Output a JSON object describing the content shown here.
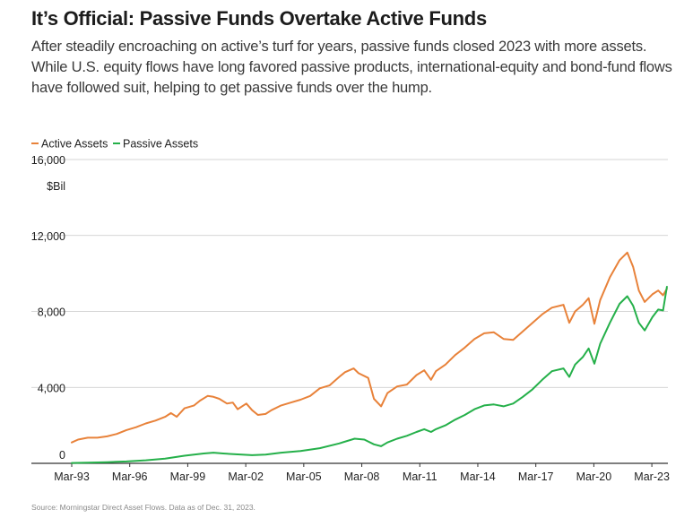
{
  "title": "It’s Official: Passive Funds Overtake Active Funds",
  "subtitle": "After steadily encroaching on active’s turf for years, passive funds closed 2023 with more assets. While U.S. equity flows have long favored passive products, international-equity and bond-fund flows have followed suit, helping to get passive funds over the hump.",
  "source": "Source: Morningstar Direct Asset Flows. Data as of Dec. 31, 2023.",
  "chart_data": {
    "type": "line",
    "y_unit": "$Bil",
    "ylim": [
      0,
      16000
    ],
    "y_ticks": [
      0,
      4000,
      8000,
      12000,
      16000
    ],
    "y_tick_labels": [
      "0",
      "4,000",
      "8,000",
      "12,000",
      "16,000"
    ],
    "x_ticks": [
      1993.17,
      1996.17,
      1999.17,
      2002.17,
      2005.17,
      2008.17,
      2011.17,
      2014.17,
      2017.17,
      2020.17,
      2023.17
    ],
    "x_tick_labels": [
      "Mar-93",
      "Mar-96",
      "Mar-99",
      "Mar-02",
      "Mar-05",
      "Mar-08",
      "Mar-11",
      "Mar-14",
      "Mar-17",
      "Mar-20",
      "Mar-23"
    ],
    "xlim": [
      1993.17,
      2024.0
    ],
    "grid": "horizontal",
    "legend_position": "top-left",
    "colors": {
      "active": "#e8823a",
      "passive": "#25b04a",
      "grid": "#c8c8c8"
    },
    "series": [
      {
        "name": "Active Assets",
        "color": "#e8823a",
        "points": [
          [
            1993.17,
            1100
          ],
          [
            1993.5,
            1250
          ],
          [
            1994.0,
            1350
          ],
          [
            1994.5,
            1350
          ],
          [
            1995.0,
            1420
          ],
          [
            1995.5,
            1550
          ],
          [
            1996.0,
            1750
          ],
          [
            1996.5,
            1900
          ],
          [
            1997.0,
            2100
          ],
          [
            1997.5,
            2250
          ],
          [
            1998.0,
            2450
          ],
          [
            1998.3,
            2650
          ],
          [
            1998.6,
            2450
          ],
          [
            1999.0,
            2900
          ],
          [
            1999.5,
            3050
          ],
          [
            1999.8,
            3300
          ],
          [
            2000.2,
            3550
          ],
          [
            2000.5,
            3500
          ],
          [
            2000.8,
            3400
          ],
          [
            2001.2,
            3150
          ],
          [
            2001.5,
            3200
          ],
          [
            2001.75,
            2850
          ],
          [
            2002.2,
            3150
          ],
          [
            2002.5,
            2800
          ],
          [
            2002.8,
            2550
          ],
          [
            2003.2,
            2600
          ],
          [
            2003.5,
            2800
          ],
          [
            2004.0,
            3050
          ],
          [
            2004.5,
            3200
          ],
          [
            2005.0,
            3350
          ],
          [
            2005.5,
            3550
          ],
          [
            2006.0,
            3950
          ],
          [
            2006.5,
            4100
          ],
          [
            2007.0,
            4550
          ],
          [
            2007.3,
            4800
          ],
          [
            2007.75,
            5000
          ],
          [
            2008.0,
            4750
          ],
          [
            2008.5,
            4500
          ],
          [
            2008.8,
            3400
          ],
          [
            2009.17,
            3000
          ],
          [
            2009.5,
            3700
          ],
          [
            2010.0,
            4050
          ],
          [
            2010.5,
            4150
          ],
          [
            2011.0,
            4650
          ],
          [
            2011.4,
            4900
          ],
          [
            2011.75,
            4400
          ],
          [
            2012.0,
            4850
          ],
          [
            2012.5,
            5200
          ],
          [
            2013.0,
            5700
          ],
          [
            2013.5,
            6100
          ],
          [
            2014.0,
            6550
          ],
          [
            2014.5,
            6850
          ],
          [
            2015.0,
            6900
          ],
          [
            2015.5,
            6550
          ],
          [
            2016.0,
            6500
          ],
          [
            2016.5,
            6950
          ],
          [
            2017.0,
            7400
          ],
          [
            2017.5,
            7850
          ],
          [
            2018.0,
            8200
          ],
          [
            2018.6,
            8350
          ],
          [
            2018.9,
            7400
          ],
          [
            2019.2,
            8000
          ],
          [
            2019.6,
            8350
          ],
          [
            2019.9,
            8700
          ],
          [
            2020.2,
            7350
          ],
          [
            2020.5,
            8600
          ],
          [
            2021.0,
            9800
          ],
          [
            2021.5,
            10700
          ],
          [
            2021.9,
            11100
          ],
          [
            2022.2,
            10350
          ],
          [
            2022.5,
            9100
          ],
          [
            2022.8,
            8500
          ],
          [
            2023.2,
            8900
          ],
          [
            2023.5,
            9100
          ],
          [
            2023.75,
            8850
          ],
          [
            2023.95,
            9200
          ]
        ]
      },
      {
        "name": "Passive Assets",
        "color": "#25b04a",
        "points": [
          [
            1993.17,
            20
          ],
          [
            1994.0,
            40
          ],
          [
            1995.0,
            60
          ],
          [
            1996.0,
            100
          ],
          [
            1997.0,
            160
          ],
          [
            1998.0,
            250
          ],
          [
            1999.0,
            400
          ],
          [
            2000.0,
            520
          ],
          [
            2000.5,
            560
          ],
          [
            2001.0,
            520
          ],
          [
            2001.75,
            470
          ],
          [
            2002.5,
            430
          ],
          [
            2003.2,
            460
          ],
          [
            2004.0,
            560
          ],
          [
            2005.0,
            650
          ],
          [
            2006.0,
            800
          ],
          [
            2007.0,
            1050
          ],
          [
            2007.8,
            1300
          ],
          [
            2008.3,
            1250
          ],
          [
            2008.8,
            1000
          ],
          [
            2009.17,
            900
          ],
          [
            2009.5,
            1100
          ],
          [
            2010.0,
            1300
          ],
          [
            2010.5,
            1450
          ],
          [
            2011.0,
            1650
          ],
          [
            2011.4,
            1800
          ],
          [
            2011.75,
            1650
          ],
          [
            2012.0,
            1800
          ],
          [
            2012.5,
            2000
          ],
          [
            2013.0,
            2300
          ],
          [
            2013.5,
            2550
          ],
          [
            2014.0,
            2850
          ],
          [
            2014.5,
            3050
          ],
          [
            2015.0,
            3100
          ],
          [
            2015.5,
            3000
          ],
          [
            2016.0,
            3150
          ],
          [
            2016.5,
            3500
          ],
          [
            2017.0,
            3900
          ],
          [
            2017.5,
            4400
          ],
          [
            2018.0,
            4850
          ],
          [
            2018.6,
            5000
          ],
          [
            2018.9,
            4550
          ],
          [
            2019.2,
            5200
          ],
          [
            2019.6,
            5600
          ],
          [
            2019.9,
            6050
          ],
          [
            2020.2,
            5250
          ],
          [
            2020.5,
            6300
          ],
          [
            2021.0,
            7400
          ],
          [
            2021.5,
            8400
          ],
          [
            2021.9,
            8800
          ],
          [
            2022.2,
            8300
          ],
          [
            2022.5,
            7400
          ],
          [
            2022.8,
            7000
          ],
          [
            2023.2,
            7700
          ],
          [
            2023.5,
            8100
          ],
          [
            2023.75,
            8050
          ],
          [
            2023.95,
            9300
          ]
        ]
      }
    ]
  }
}
